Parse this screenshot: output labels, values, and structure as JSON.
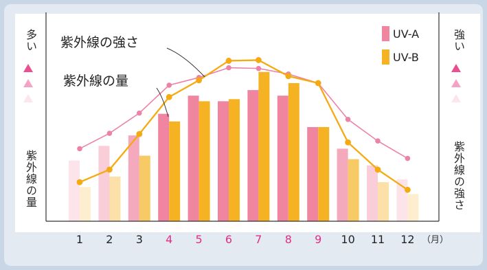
{
  "chart_data": {
    "type": "bar+line",
    "categories": [
      "1",
      "2",
      "3",
      "4",
      "5",
      "6",
      "7",
      "8",
      "9",
      "10",
      "11",
      "12"
    ],
    "x_unit": "（月）",
    "highlight_categories": [
      "4",
      "5",
      "6",
      "7",
      "8",
      "9"
    ],
    "series": [
      {
        "name": "UV-A",
        "kind": "bar",
        "values": [
          87,
          108,
          123,
          154,
          180,
          172,
          188,
          180,
          135,
          104,
          80,
          60
        ]
      },
      {
        "name": "UV-B",
        "kind": "bar",
        "values": [
          49,
          64,
          94,
          143,
          172,
          175,
          214,
          198,
          135,
          89,
          56,
          39
        ]
      }
    ],
    "lines": [
      {
        "label": "紫外線の強さ",
        "axis": "right",
        "values": [
          104,
          126,
          155,
          195,
          206,
          220,
          219,
          211,
          198,
          146,
          115,
          90
        ]
      },
      {
        "label": "紫外線の量",
        "axis": "left",
        "values": [
          56,
          74,
          125,
          178,
          202,
          230,
          231,
          208,
          198,
          113,
          74,
          45
        ]
      }
    ],
    "ylim": [
      0,
      260
    ],
    "left_axis": {
      "top": "多い",
      "label": "紫外線の量"
    },
    "right_axis": {
      "top": "強い",
      "label": "紫外線の強さ"
    },
    "legend_placement": "top-right",
    "grid": false
  },
  "colors": {
    "uva": "#f0859f",
    "uvb": "#f5b324",
    "strength_line": "#ec82a9",
    "amount_line": "#f4aa10",
    "highlight_text": "#e02f85",
    "triangle_levels": [
      "#e8508f",
      "#f5a3c4",
      "#fbe5ee"
    ]
  },
  "icons": [
    "triangle-up-icon"
  ]
}
